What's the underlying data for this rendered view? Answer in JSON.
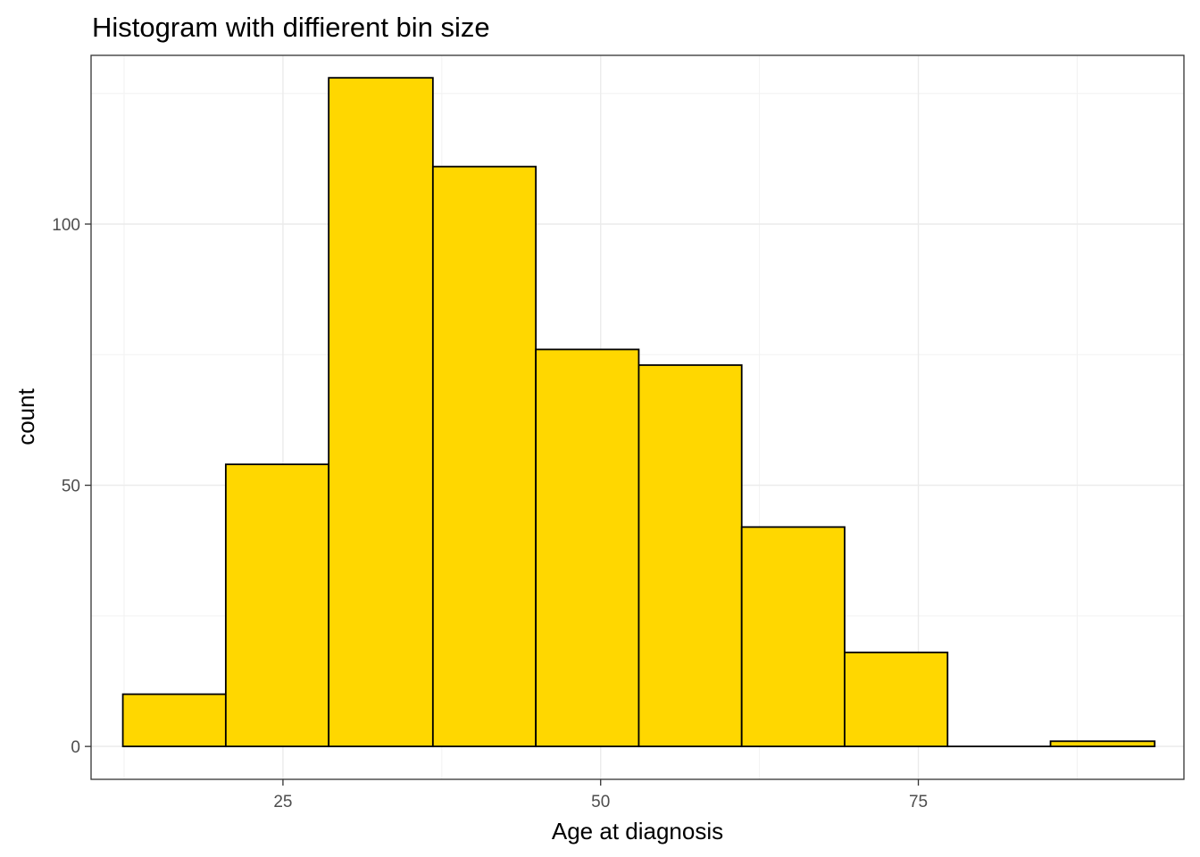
{
  "chart_data": {
    "type": "bar",
    "subtype": "histogram",
    "title": "Histogram with diffierent bin size",
    "xlabel": "Age at diagnosis",
    "ylabel": "count",
    "xlim": [
      9.9,
      95.9
    ],
    "ylim": [
      -6.3,
      132.3
    ],
    "x_ticks": [
      25,
      50,
      75
    ],
    "y_ticks": [
      0,
      50,
      100
    ],
    "grid": true,
    "legend": "none",
    "bins": [
      {
        "x0": 12.4,
        "x1": 20.5,
        "count": 10
      },
      {
        "x0": 20.5,
        "x1": 28.6,
        "count": 54
      },
      {
        "x0": 28.6,
        "x1": 36.8,
        "count": 128
      },
      {
        "x0": 36.8,
        "x1": 44.9,
        "count": 111
      },
      {
        "x0": 44.9,
        "x1": 53.0,
        "count": 76
      },
      {
        "x0": 53.0,
        "x1": 61.1,
        "count": 73
      },
      {
        "x0": 61.1,
        "x1": 69.2,
        "count": 42
      },
      {
        "x0": 69.2,
        "x1": 77.3,
        "count": 18
      },
      {
        "x0": 77.3,
        "x1": 85.4,
        "count": 0
      },
      {
        "x0": 85.4,
        "x1": 93.6,
        "count": 1
      }
    ],
    "colors": {
      "fill": "#FFD700",
      "outline": "#000000",
      "grid": "#EBEBEB",
      "panel_border": "#333333"
    }
  }
}
